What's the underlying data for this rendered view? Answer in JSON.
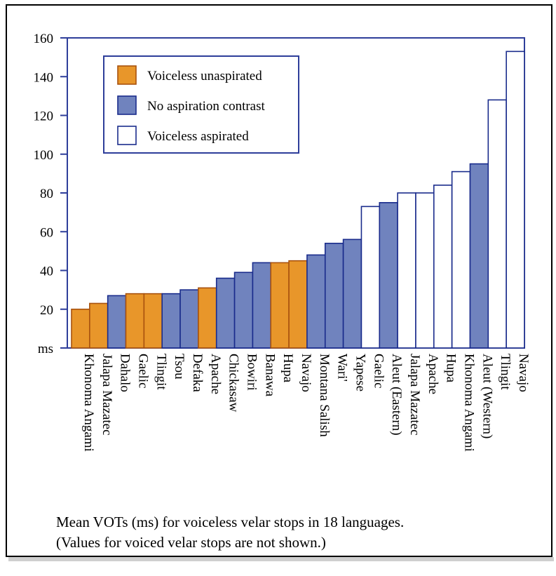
{
  "chart_data": {
    "type": "bar",
    "ylabel": "ms",
    "ylim": [
      0,
      160
    ],
    "yticks": [
      20,
      40,
      60,
      80,
      100,
      120,
      140,
      160
    ],
    "grid": false,
    "legend_position": "top-left",
    "legend": [
      {
        "key": "unasp",
        "label": "Voiceless unaspirated",
        "color": "#E8962A"
      },
      {
        "key": "none",
        "label": "No aspiration contrast",
        "color": "#7083BE"
      },
      {
        "key": "asp",
        "label": "Voiceless aspirated",
        "color": "#FFFFFF"
      }
    ],
    "bar_stroke": "#1A2C8C",
    "axis_color": "#2E3E9A",
    "bars": [
      {
        "label": "Khonoma Angami",
        "value": 20,
        "group": "unasp"
      },
      {
        "label": "Jalapa Mazatec",
        "value": 23,
        "group": "unasp"
      },
      {
        "label": "Dahalo",
        "value": 27,
        "group": "none"
      },
      {
        "label": "Gaelic",
        "value": 28,
        "group": "unasp"
      },
      {
        "label": "Tlingit",
        "value": 28,
        "group": "unasp"
      },
      {
        "label": "Tsou",
        "value": 28,
        "group": "none"
      },
      {
        "label": "Defaka",
        "value": 30,
        "group": "none"
      },
      {
        "label": "Apache",
        "value": 31,
        "group": "unasp"
      },
      {
        "label": "Chickasaw",
        "value": 36,
        "group": "none"
      },
      {
        "label": "Bowiri",
        "value": 39,
        "group": "none"
      },
      {
        "label": "Banawa",
        "value": 44,
        "group": "none"
      },
      {
        "label": "Hupa",
        "value": 44,
        "group": "unasp"
      },
      {
        "label": "Navajo",
        "value": 45,
        "group": "unasp"
      },
      {
        "label": "Montana Salish",
        "value": 48,
        "group": "none"
      },
      {
        "label": "Wari'",
        "value": 54,
        "group": "none"
      },
      {
        "label": "Yapese",
        "value": 56,
        "group": "none"
      },
      {
        "label": "Gaelic",
        "value": 73,
        "group": "asp"
      },
      {
        "label": "Aleut (Eastern)",
        "value": 75,
        "group": "none"
      },
      {
        "label": "Jalapa Mazatec",
        "value": 80,
        "group": "asp"
      },
      {
        "label": "Apache",
        "value": 80,
        "group": "asp"
      },
      {
        "label": "Hupa",
        "value": 84,
        "group": "asp"
      },
      {
        "label": "Khonoma Angami",
        "value": 91,
        "group": "asp"
      },
      {
        "label": "Aleut (Western)",
        "value": 95,
        "group": "none"
      },
      {
        "label": "Tlingit",
        "value": 128,
        "group": "asp"
      },
      {
        "label": "Navajo",
        "value": 153,
        "group": "asp"
      }
    ]
  },
  "caption": {
    "line1": "Mean VOTs (ms) for voiceless velar stops in 18 languages.",
    "line2": "(Values for voiced velar stops are not shown.)"
  }
}
